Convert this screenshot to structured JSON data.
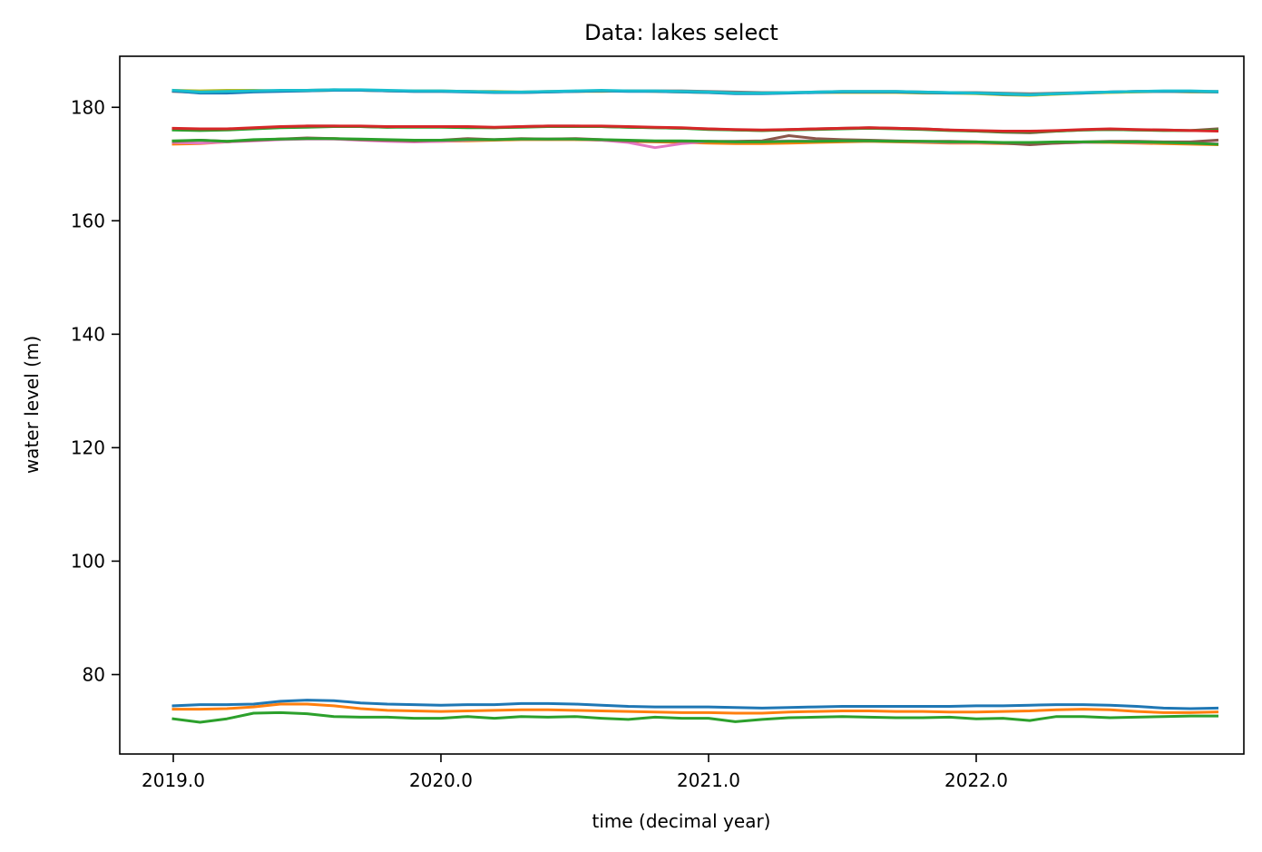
{
  "chart_data": {
    "type": "line",
    "title": "Data: lakes select",
    "xlabel": "time (decimal year)",
    "ylabel": "water level (m)",
    "xlim": [
      2018.8,
      2023.0
    ],
    "ylim": [
      66,
      189
    ],
    "x_ticks": [
      "2019.0",
      "2020.0",
      "2021.0",
      "2022.0"
    ],
    "y_ticks": [
      "80",
      "100",
      "120",
      "140",
      "160",
      "180"
    ],
    "grid": false,
    "legend": "none",
    "x": [
      2019.0,
      2019.1,
      2019.2,
      2019.3,
      2019.4,
      2019.5,
      2019.6,
      2019.7,
      2019.8,
      2019.9,
      2020.0,
      2020.1,
      2020.2,
      2020.3,
      2020.4,
      2020.5,
      2020.6,
      2020.7,
      2020.8,
      2020.9,
      2021.0,
      2021.1,
      2021.2,
      2021.3,
      2021.4,
      2021.5,
      2021.6,
      2021.7,
      2021.8,
      2021.9,
      2022.0,
      2022.1,
      2022.2,
      2022.3,
      2022.4,
      2022.5,
      2022.6,
      2022.7,
      2022.8,
      2022.9
    ],
    "series": [
      {
        "color": "#bcbd22",
        "values": [
          183.0,
          182.9,
          183.0,
          183.0,
          182.9,
          182.9,
          183.0,
          183.0,
          182.9,
          182.9,
          182.9,
          182.8,
          182.8,
          182.7,
          182.8,
          182.8,
          182.8,
          182.9,
          182.8,
          182.7,
          182.6,
          182.5,
          182.5,
          182.6,
          182.6,
          182.6,
          182.6,
          182.6,
          182.5,
          182.5,
          182.4,
          182.2,
          182.1,
          182.3,
          182.5,
          182.6,
          182.7,
          182.8,
          182.7,
          182.7
        ]
      },
      {
        "color": "#7f7f7f",
        "values": [
          182.8,
          182.6,
          182.7,
          182.8,
          182.9,
          183.0,
          183.1,
          183.0,
          182.9,
          182.8,
          182.8,
          182.8,
          182.7,
          182.6,
          182.7,
          182.8,
          182.9,
          182.9,
          182.9,
          182.9,
          182.8,
          182.7,
          182.6,
          182.6,
          182.7,
          182.8,
          182.8,
          182.8,
          182.7,
          182.6,
          182.6,
          182.5,
          182.4,
          182.5,
          182.6,
          182.7,
          182.8,
          182.8,
          182.8,
          182.8
        ]
      },
      {
        "color": "#1f77b4",
        "values": [
          182.9,
          182.5,
          182.5,
          182.7,
          182.8,
          182.9,
          183.0,
          183.0,
          182.9,
          182.8,
          182.8,
          182.7,
          182.6,
          182.6,
          182.7,
          182.8,
          182.9,
          182.8,
          182.8,
          182.7,
          182.6,
          182.4,
          182.4,
          182.5,
          182.6,
          182.7,
          182.7,
          182.7,
          182.6,
          182.5,
          182.5,
          182.3,
          182.2,
          182.4,
          182.5,
          182.7,
          182.8,
          182.8,
          182.8,
          182.7
        ]
      },
      {
        "color": "#17becf",
        "values": [
          183.0,
          182.7,
          182.8,
          182.9,
          183.0,
          183.0,
          183.1,
          183.1,
          183.0,
          182.9,
          182.9,
          182.8,
          182.7,
          182.7,
          182.8,
          182.9,
          183.0,
          182.9,
          182.9,
          182.8,
          182.7,
          182.5,
          182.5,
          182.6,
          182.7,
          182.8,
          182.8,
          182.8,
          182.7,
          182.6,
          182.5,
          182.4,
          182.2,
          182.4,
          182.6,
          182.7,
          182.8,
          182.9,
          182.9,
          182.8
        ]
      },
      {
        "color": "#8c564b",
        "values": [
          176.2,
          176.0,
          176.1,
          176.3,
          176.5,
          176.7,
          176.7,
          176.6,
          176.5,
          176.6,
          176.6,
          176.5,
          176.4,
          176.6,
          176.7,
          176.7,
          176.6,
          176.5,
          176.4,
          176.3,
          176.2,
          176.0,
          175.9,
          176.1,
          176.2,
          176.3,
          176.4,
          176.3,
          176.2,
          176.0,
          175.8,
          175.6,
          175.5,
          175.8,
          176.0,
          176.1,
          176.0,
          176.0,
          175.9,
          176.2
        ]
      },
      {
        "color": "#2ca02c",
        "values": [
          176.0,
          175.9,
          176.0,
          176.2,
          176.4,
          176.5,
          176.6,
          176.6,
          176.5,
          176.5,
          176.5,
          176.4,
          176.4,
          176.5,
          176.6,
          176.6,
          176.6,
          176.5,
          176.4,
          176.3,
          176.1,
          176.0,
          175.9,
          176.0,
          176.1,
          176.2,
          176.3,
          176.2,
          176.1,
          175.9,
          175.8,
          175.7,
          175.7,
          175.8,
          176.0,
          176.1,
          176.0,
          175.9,
          175.9,
          176.0
        ]
      },
      {
        "color": "#d62728",
        "values": [
          176.3,
          176.2,
          176.2,
          176.4,
          176.6,
          176.7,
          176.7,
          176.7,
          176.6,
          176.6,
          176.6,
          176.6,
          176.5,
          176.6,
          176.7,
          176.7,
          176.7,
          176.6,
          176.5,
          176.4,
          176.2,
          176.1,
          176.0,
          176.1,
          176.2,
          176.3,
          176.4,
          176.3,
          176.2,
          176.0,
          175.9,
          175.8,
          175.8,
          175.9,
          176.1,
          176.2,
          176.1,
          176.0,
          175.9,
          175.8
        ]
      },
      {
        "color": "#ff7f0e",
        "values": [
          173.5,
          173.6,
          173.9,
          174.2,
          174.4,
          174.5,
          174.5,
          174.3,
          174.1,
          174.0,
          174.0,
          174.1,
          174.2,
          174.3,
          174.3,
          174.3,
          174.2,
          174.0,
          173.9,
          173.8,
          173.7,
          173.6,
          173.6,
          173.7,
          173.8,
          173.9,
          174.0,
          173.9,
          173.8,
          173.7,
          173.7,
          173.6,
          173.6,
          173.7,
          173.8,
          173.8,
          173.7,
          173.6,
          173.5,
          173.4
        ]
      },
      {
        "color": "#e377c2",
        "values": [
          173.8,
          173.7,
          173.9,
          174.1,
          174.3,
          174.4,
          174.4,
          174.2,
          174.0,
          173.9,
          174.0,
          174.2,
          174.3,
          174.4,
          174.4,
          174.4,
          174.2,
          173.8,
          172.9,
          173.6,
          174.0,
          173.9,
          174.0,
          174.1,
          174.1,
          174.1,
          174.1,
          174.0,
          173.9,
          173.8,
          173.8,
          173.7,
          173.6,
          173.7,
          173.8,
          173.9,
          173.8,
          173.8,
          173.7,
          173.6
        ]
      },
      {
        "color": "#8c564b",
        "values": [
          174.0,
          174.2,
          174.0,
          174.2,
          174.4,
          174.6,
          174.5,
          174.3,
          174.2,
          174.1,
          174.2,
          174.5,
          174.3,
          174.5,
          174.4,
          174.5,
          174.3,
          174.1,
          174.0,
          174.0,
          174.0,
          174.0,
          174.1,
          175.0,
          174.5,
          174.3,
          174.2,
          174.1,
          174.0,
          174.0,
          173.9,
          173.7,
          173.4,
          173.7,
          173.9,
          174.0,
          174.0,
          173.9,
          173.9,
          174.2
        ]
      },
      {
        "color": "#2ca02c",
        "values": [
          174.1,
          174.2,
          174.0,
          174.3,
          174.4,
          174.5,
          174.5,
          174.4,
          174.3,
          174.2,
          174.2,
          174.3,
          174.3,
          174.4,
          174.4,
          174.4,
          174.3,
          174.2,
          174.1,
          174.1,
          174.0,
          173.9,
          173.9,
          174.0,
          174.0,
          174.1,
          174.1,
          174.0,
          174.0,
          173.9,
          173.9,
          173.8,
          173.8,
          173.9,
          173.9,
          173.9,
          173.9,
          173.8,
          173.7,
          173.5
        ]
      },
      {
        "color": "#ff7f0e",
        "values": [
          73.9,
          73.9,
          74.0,
          74.3,
          74.8,
          74.8,
          74.5,
          74.0,
          73.7,
          73.6,
          73.5,
          73.6,
          73.7,
          73.8,
          73.8,
          73.7,
          73.6,
          73.5,
          73.4,
          73.3,
          73.3,
          73.2,
          73.2,
          73.4,
          73.5,
          73.6,
          73.6,
          73.5,
          73.5,
          73.4,
          73.4,
          73.5,
          73.6,
          73.8,
          73.9,
          73.8,
          73.5,
          73.3,
          73.3,
          73.4
        ]
      },
      {
        "color": "#1f77b4",
        "values": [
          74.5,
          74.7,
          74.7,
          74.8,
          75.3,
          75.5,
          75.4,
          75.0,
          74.8,
          74.7,
          74.6,
          74.7,
          74.7,
          74.9,
          74.9,
          74.8,
          74.6,
          74.4,
          74.3,
          74.3,
          74.3,
          74.2,
          74.1,
          74.2,
          74.3,
          74.4,
          74.4,
          74.4,
          74.4,
          74.4,
          74.5,
          74.5,
          74.6,
          74.7,
          74.7,
          74.6,
          74.4,
          74.1,
          74.0,
          74.1
        ]
      },
      {
        "color": "#2ca02c",
        "values": [
          72.2,
          71.6,
          72.2,
          73.2,
          73.3,
          73.1,
          72.6,
          72.5,
          72.5,
          72.3,
          72.3,
          72.6,
          72.3,
          72.6,
          72.5,
          72.6,
          72.3,
          72.1,
          72.5,
          72.3,
          72.3,
          71.7,
          72.1,
          72.4,
          72.5,
          72.6,
          72.5,
          72.4,
          72.4,
          72.5,
          72.2,
          72.3,
          71.9,
          72.6,
          72.6,
          72.4,
          72.5,
          72.6,
          72.7,
          72.7
        ]
      }
    ]
  }
}
